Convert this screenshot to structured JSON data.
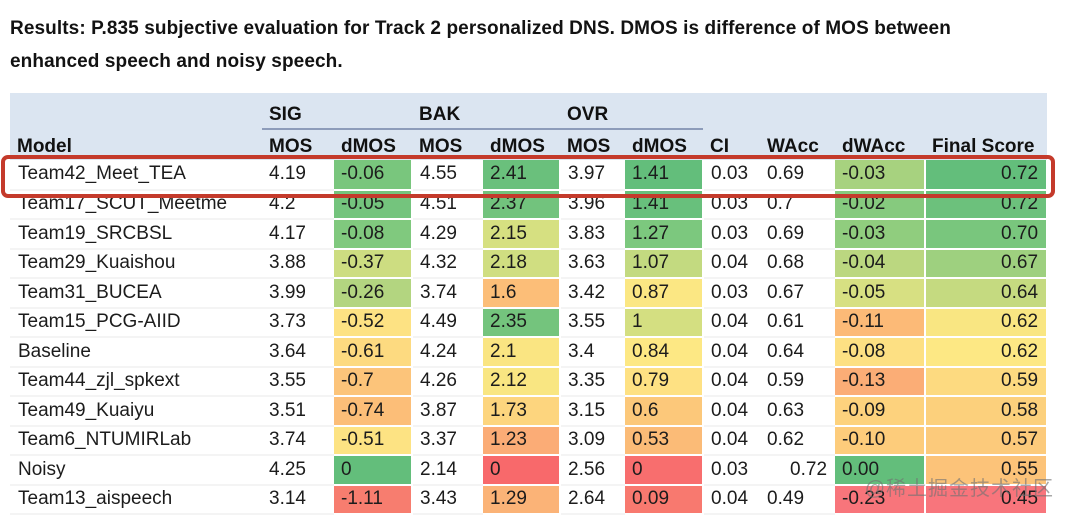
{
  "title": "Results: P.835 subjective evaluation for Track 2 personalized DNS. DMOS is difference of MOS between enhanced speech and noisy speech.",
  "watermark": "@稀土掘金技术社区",
  "colors": {
    "header_bg": "#dbe5f1",
    "highlight_border": "#c43a2b",
    "scale_green": "#63be7b",
    "scale_yellow": "#fde884",
    "scale_red": "#f8696b"
  },
  "table": {
    "groups": [
      {
        "label": "",
        "span": 1,
        "underline": false
      },
      {
        "label": "SIG",
        "span": 2,
        "underline": true
      },
      {
        "label": "BAK",
        "span": 2,
        "underline": true
      },
      {
        "label": "OVR",
        "span": 2,
        "underline": true
      },
      {
        "label": "",
        "span": 1,
        "underline": false
      },
      {
        "label": "",
        "span": 1,
        "underline": false
      },
      {
        "label": "",
        "span": 1,
        "underline": false
      },
      {
        "label": "",
        "span": 1,
        "underline": false
      }
    ],
    "columns": [
      "Model",
      "MOS",
      "dMOS",
      "MOS",
      "dMOS",
      "MOS",
      "dMOS",
      "CI",
      "WAcc",
      "dWAcc",
      "Final Score"
    ],
    "rows": [
      {
        "highlight": true,
        "cells": [
          {
            "v": "Team42_Meet_TEA"
          },
          {
            "v": "4.19"
          },
          {
            "v": "-0.06",
            "bg": "#79c67d"
          },
          {
            "v": "4.55"
          },
          {
            "v": "2.41",
            "bg": "#6ac07c"
          },
          {
            "v": "3.97"
          },
          {
            "v": "1.41",
            "bg": "#63be7b"
          },
          {
            "v": "0.03"
          },
          {
            "v": "0.69"
          },
          {
            "v": "-0.03",
            "bg": "#a7d27f"
          },
          {
            "v": "0.72",
            "bg": "#63be7b",
            "align": "right"
          }
        ]
      },
      {
        "highlight": false,
        "cells": [
          {
            "v": "Team17_SCUT_Meetme"
          },
          {
            "v": "4.2"
          },
          {
            "v": "-0.05",
            "bg": "#74c47d"
          },
          {
            "v": "4.51"
          },
          {
            "v": "2.37",
            "bg": "#72c37d"
          },
          {
            "v": "3.96"
          },
          {
            "v": "1.41",
            "bg": "#68c07c"
          },
          {
            "v": "0.03"
          },
          {
            "v": "0.7"
          },
          {
            "v": "-0.02",
            "bg": "#86ca7e"
          },
          {
            "v": "0.72",
            "bg": "#6cc17c",
            "align": "right"
          }
        ]
      },
      {
        "highlight": false,
        "cells": [
          {
            "v": "Team19_SRCBSL"
          },
          {
            "v": "4.17"
          },
          {
            "v": "-0.08",
            "bg": "#80c97e"
          },
          {
            "v": "4.29"
          },
          {
            "v": "2.15",
            "bg": "#d6e081"
          },
          {
            "v": "3.83"
          },
          {
            "v": "1.27",
            "bg": "#7cc87e"
          },
          {
            "v": "0.03"
          },
          {
            "v": "0.69"
          },
          {
            "v": "-0.03",
            "bg": "#90cd7e"
          },
          {
            "v": "0.70",
            "bg": "#79c67d",
            "align": "right"
          }
        ]
      },
      {
        "highlight": false,
        "cells": [
          {
            "v": "Team29_Kuaishou"
          },
          {
            "v": "3.88"
          },
          {
            "v": "-0.37",
            "bg": "#cddd81"
          },
          {
            "v": "4.32"
          },
          {
            "v": "2.18",
            "bg": "#d0de81"
          },
          {
            "v": "3.63"
          },
          {
            "v": "1.07",
            "bg": "#c3da80"
          },
          {
            "v": "0.04"
          },
          {
            "v": "0.68"
          },
          {
            "v": "-0.04",
            "bg": "#bbd780"
          },
          {
            "v": "0.67",
            "bg": "#9ed07f",
            "align": "right"
          }
        ]
      },
      {
        "highlight": false,
        "cells": [
          {
            "v": "Team31_BUCEA"
          },
          {
            "v": "3.99"
          },
          {
            "v": "-0.26",
            "bg": "#b3d580"
          },
          {
            "v": "3.74"
          },
          {
            "v": "1.6",
            "bg": "#fcbe78"
          },
          {
            "v": "3.42"
          },
          {
            "v": "0.87",
            "bg": "#fbe783"
          },
          {
            "v": "0.03"
          },
          {
            "v": "0.67"
          },
          {
            "v": "-0.05",
            "bg": "#d7e082"
          },
          {
            "v": "0.64",
            "bg": "#c5da80",
            "align": "right"
          }
        ]
      },
      {
        "highlight": false,
        "cells": [
          {
            "v": "Team15_PCG-AIID"
          },
          {
            "v": "3.73"
          },
          {
            "v": "-0.52",
            "bg": "#fde283"
          },
          {
            "v": "4.49"
          },
          {
            "v": "2.35",
            "bg": "#74c47d"
          },
          {
            "v": "3.55"
          },
          {
            "v": "1",
            "bg": "#d4df81"
          },
          {
            "v": "0.04"
          },
          {
            "v": "0.61"
          },
          {
            "v": "-0.11",
            "bg": "#fcba77"
          },
          {
            "v": "0.62",
            "bg": "#f9e682",
            "align": "right"
          }
        ]
      },
      {
        "highlight": false,
        "cells": [
          {
            "v": "Baseline"
          },
          {
            "v": "3.64"
          },
          {
            "v": "-0.61",
            "bg": "#fdda80"
          },
          {
            "v": "4.24"
          },
          {
            "v": "2.1",
            "bg": "#fae582"
          },
          {
            "v": "3.4"
          },
          {
            "v": "0.84",
            "bg": "#fde884"
          },
          {
            "v": "0.04"
          },
          {
            "v": "0.64"
          },
          {
            "v": "-0.08",
            "bg": "#fde083"
          },
          {
            "v": "0.62",
            "bg": "#fde884",
            "align": "right"
          }
        ]
      },
      {
        "highlight": false,
        "cells": [
          {
            "v": "Team44_zjl_spkext"
          },
          {
            "v": "3.55"
          },
          {
            "v": "-0.7",
            "bg": "#fcc47a"
          },
          {
            "v": "4.26"
          },
          {
            "v": "2.12",
            "bg": "#f9e682"
          },
          {
            "v": "3.35"
          },
          {
            "v": "0.79",
            "bg": "#fee183"
          },
          {
            "v": "0.04"
          },
          {
            "v": "0.59"
          },
          {
            "v": "-0.13",
            "bg": "#fbad76"
          },
          {
            "v": "0.59",
            "bg": "#fdda80",
            "align": "right"
          }
        ]
      },
      {
        "highlight": false,
        "cells": [
          {
            "v": "Team49_Kuaiyu"
          },
          {
            "v": "3.51"
          },
          {
            "v": "-0.74",
            "bg": "#fcbe78"
          },
          {
            "v": "3.87"
          },
          {
            "v": "1.73",
            "bg": "#fdd57e"
          },
          {
            "v": "3.15"
          },
          {
            "v": "0.6",
            "bg": "#fcc87a"
          },
          {
            "v": "0.04"
          },
          {
            "v": "0.63"
          },
          {
            "v": "-0.09",
            "bg": "#fdd27d"
          },
          {
            "v": "0.58",
            "bg": "#fcd07c",
            "align": "right"
          }
        ]
      },
      {
        "highlight": false,
        "cells": [
          {
            "v": "Team6_NTUMIRLab"
          },
          {
            "v": "3.74"
          },
          {
            "v": "-0.51",
            "bg": "#fde383"
          },
          {
            "v": "3.37"
          },
          {
            "v": "1.23",
            "bg": "#fbac76"
          },
          {
            "v": "3.09"
          },
          {
            "v": "0.53",
            "bg": "#fbbb77"
          },
          {
            "v": "0.04"
          },
          {
            "v": "0.62"
          },
          {
            "v": "-0.10",
            "bg": "#fdcc7b"
          },
          {
            "v": "0.57",
            "bg": "#fcca7b",
            "align": "right"
          }
        ]
      },
      {
        "highlight": false,
        "cells": [
          {
            "v": "Noisy"
          },
          {
            "v": "4.25"
          },
          {
            "v": "0",
            "bg": "#63be7b"
          },
          {
            "v": "2.14"
          },
          {
            "v": "0",
            "bg": "#f8696b"
          },
          {
            "v": "2.56"
          },
          {
            "v": "0",
            "bg": "#f86e6e"
          },
          {
            "v": "0.03"
          },
          {
            "v": "0.72",
            "align": "right"
          },
          {
            "v": "0.00",
            "bg": "#63be7b"
          },
          {
            "v": "0.55",
            "bg": "#fcc379",
            "align": "right"
          }
        ]
      },
      {
        "highlight": false,
        "cells": [
          {
            "v": "Team13_aispeech"
          },
          {
            "v": "3.14"
          },
          {
            "v": "-1.11",
            "bg": "#f77d6f"
          },
          {
            "v": "3.43"
          },
          {
            "v": "1.29",
            "bg": "#fbb377"
          },
          {
            "v": "2.64"
          },
          {
            "v": "0.09",
            "bg": "#f8796f"
          },
          {
            "v": "0.04"
          },
          {
            "v": "0.49"
          },
          {
            "v": "-0.23",
            "bg": "#f8757b"
          },
          {
            "v": "0.45",
            "bg": "#f8757c",
            "align": "right"
          }
        ]
      }
    ]
  }
}
